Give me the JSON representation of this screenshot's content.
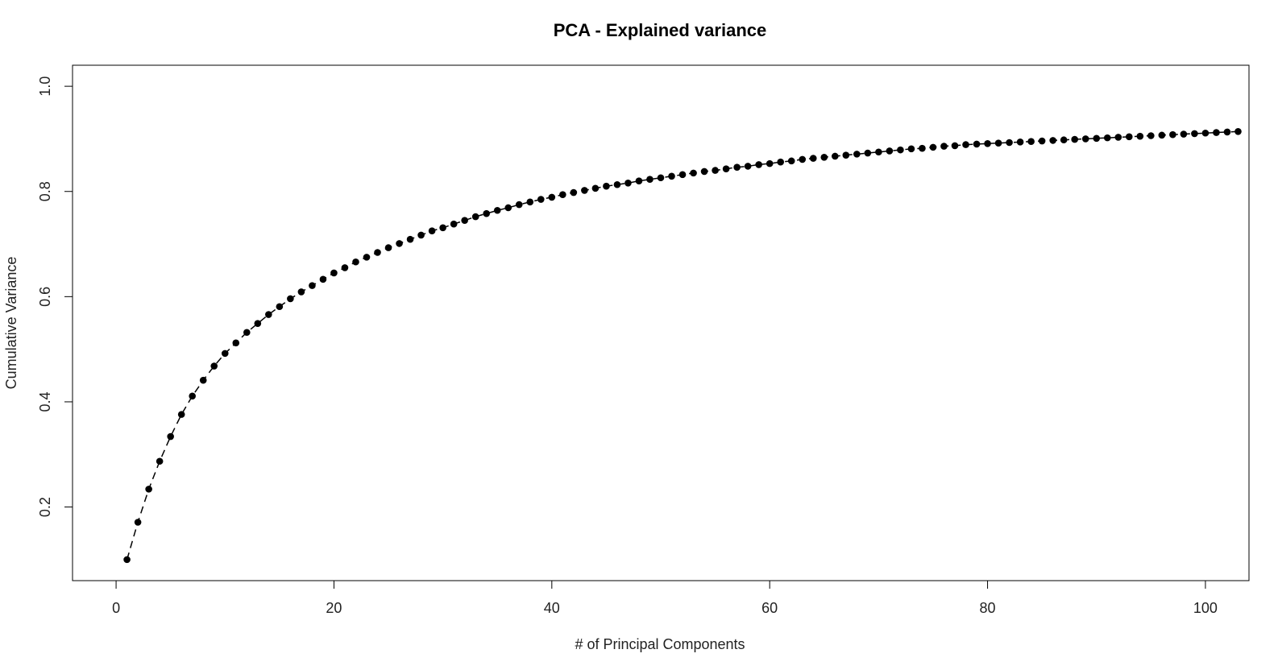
{
  "chart_data": {
    "type": "scatter",
    "title": "PCA - Explained variance",
    "xlabel": "# of Principal Components",
    "ylabel": "Cumulative Variance",
    "x_ticks": [
      0,
      20,
      40,
      60,
      80,
      100
    ],
    "y_ticks": [
      0.2,
      0.4,
      0.6,
      0.8,
      1.0
    ],
    "x_tick_labels": [
      "0",
      "20",
      "40",
      "60",
      "80",
      "100"
    ],
    "y_tick_labels": [
      "0.2",
      "0.4",
      "0.6",
      "0.8",
      "1.0"
    ],
    "xlim": [
      -4,
      104
    ],
    "ylim": [
      0.06,
      1.04
    ],
    "grid": false,
    "series": [
      {
        "color": "#000000",
        "x": [
          1,
          2,
          3,
          4,
          5,
          6,
          7,
          8,
          9,
          10,
          11,
          12,
          13,
          14,
          15,
          16,
          17,
          18,
          19,
          20,
          21,
          22,
          23,
          24,
          25,
          26,
          27,
          28,
          29,
          30,
          31,
          32,
          33,
          34,
          35,
          36,
          37,
          38,
          39,
          40,
          41,
          42,
          43,
          44,
          45,
          46,
          47,
          48,
          49,
          50,
          51,
          52,
          53,
          54,
          55,
          56,
          57,
          58,
          59,
          60,
          61,
          62,
          63,
          64,
          65,
          66,
          67,
          68,
          69,
          70,
          71,
          72,
          73,
          74,
          75,
          76,
          77,
          78,
          79,
          80,
          81,
          82,
          83,
          84,
          85,
          86,
          87,
          88,
          89,
          90,
          91,
          92,
          93,
          94,
          95,
          96,
          97,
          98,
          99,
          100,
          101,
          102,
          103
        ],
        "y": [
          0.1,
          0.171,
          0.234,
          0.287,
          0.334,
          0.376,
          0.411,
          0.441,
          0.468,
          0.492,
          0.512,
          0.532,
          0.549,
          0.566,
          0.581,
          0.596,
          0.609,
          0.621,
          0.633,
          0.645,
          0.655,
          0.666,
          0.675,
          0.684,
          0.693,
          0.701,
          0.709,
          0.717,
          0.725,
          0.731,
          0.738,
          0.745,
          0.752,
          0.758,
          0.764,
          0.769,
          0.775,
          0.78,
          0.785,
          0.789,
          0.794,
          0.798,
          0.802,
          0.806,
          0.81,
          0.813,
          0.816,
          0.82,
          0.823,
          0.826,
          0.829,
          0.832,
          0.835,
          0.838,
          0.84,
          0.843,
          0.846,
          0.848,
          0.851,
          0.853,
          0.856,
          0.858,
          0.861,
          0.863,
          0.865,
          0.867,
          0.869,
          0.871,
          0.873,
          0.875,
          0.877,
          0.879,
          0.881,
          0.882,
          0.884,
          0.886,
          0.887,
          0.889,
          0.89,
          0.891,
          0.892,
          0.893,
          0.894,
          0.895,
          0.896,
          0.897,
          0.898,
          0.899,
          0.9,
          0.901,
          0.902,
          0.903,
          0.904,
          0.905,
          0.906,
          0.907,
          0.908,
          0.909,
          0.91,
          0.911,
          0.912,
          0.913,
          0.914
        ]
      }
    ]
  }
}
